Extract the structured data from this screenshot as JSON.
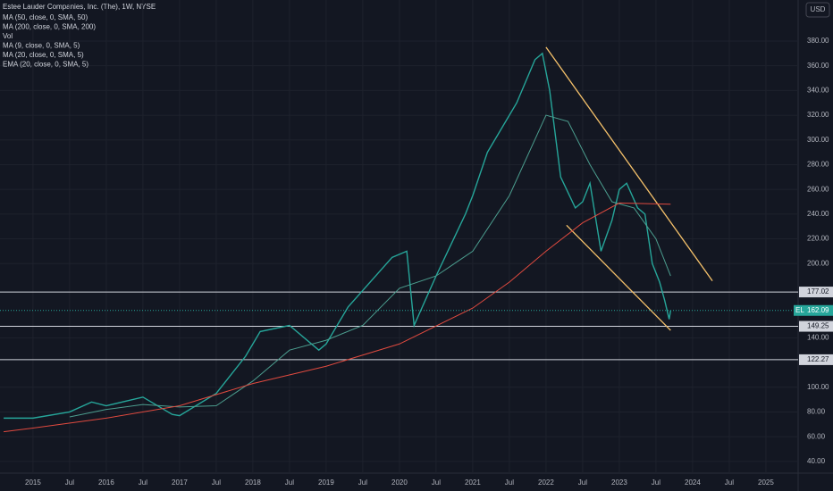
{
  "chart_data": {
    "type": "line",
    "title": "Estee Lauder Companies, Inc. (The), 1W, NYSE",
    "indicators": [
      "MA (50, close, 0, SMA, 50)",
      "MA (200, close, 0, SMA, 200)",
      "Vol",
      "MA (9, close, 0, SMA, 5)",
      "MA (20, close, 0, SMA, 5)",
      "EMA (20, close, 0, SMA, 5)"
    ],
    "currency": "USD",
    "symbol": "EL",
    "last_price": 162.09,
    "grid": true,
    "xlim": [
      2014.55,
      2025.44
    ],
    "ylim": [
      30.5,
      413.2
    ],
    "xticks": [
      2015,
      {
        "value": 2015.5,
        "label": "Jul"
      },
      2016,
      {
        "value": 2016.5,
        "label": "Jul"
      },
      2017,
      {
        "value": 2017.5,
        "label": "Jul"
      },
      2018,
      {
        "value": 2018.5,
        "label": "Jul"
      },
      2019,
      {
        "value": 2019.5,
        "label": "Jul"
      },
      2020,
      {
        "value": 2020.5,
        "label": "Jul"
      },
      2021,
      {
        "value": 2021.5,
        "label": "Jul"
      },
      2022,
      {
        "value": 2022.5,
        "label": "Jul"
      },
      2023,
      {
        "value": 2023.5,
        "label": "Jul"
      },
      2024,
      {
        "value": 2024.5,
        "label": "Jul"
      },
      2025
    ],
    "yticks": [
      {
        "value": 380,
        "label": "380.00"
      },
      {
        "value": 360,
        "label": "360.00"
      },
      {
        "value": 340,
        "label": "340.00"
      },
      {
        "value": 320,
        "label": "320.00"
      },
      {
        "value": 300,
        "label": "300.00"
      },
      {
        "value": 280,
        "label": "280.00"
      },
      {
        "value": 260,
        "label": "260.00"
      },
      {
        "value": 240,
        "label": "240.00"
      },
      {
        "value": 220,
        "label": "220.00"
      },
      {
        "value": 200,
        "label": "200.00"
      },
      {
        "value": 140,
        "label": "140.00"
      },
      {
        "value": 100,
        "label": "100.00"
      },
      {
        "value": 80,
        "label": "80.00"
      },
      {
        "value": 60,
        "label": "60.00"
      },
      {
        "value": 40,
        "label": "40.00"
      }
    ],
    "series": [
      {
        "color": "#26a69a",
        "x": [
          2014.6,
          2015.0,
          2015.5,
          2015.8,
          2016.0,
          2016.5,
          2016.9,
          2017.0,
          2017.5,
          2017.9,
          2018.1,
          2018.5,
          2018.9,
          2019.0,
          2019.3,
          2019.6,
          2019.9,
          2020.1,
          2020.2,
          2020.5,
          2020.9,
          2021.0,
          2021.2,
          2021.6,
          2021.85,
          2021.95,
          2022.05,
          2022.2,
          2022.4,
          2022.5,
          2022.6,
          2022.75,
          2022.9,
          2023.0,
          2023.1,
          2023.25,
          2023.35,
          2023.45,
          2023.55,
          2023.62,
          2023.68,
          2023.7
        ],
        "values": [
          75,
          75,
          80,
          88,
          85,
          92,
          78,
          77,
          95,
          125,
          145,
          150,
          130,
          135,
          165,
          185,
          205,
          210,
          150,
          190,
          240,
          255,
          290,
          330,
          365,
          370,
          340,
          270,
          245,
          250,
          265,
          210,
          235,
          260,
          265,
          245,
          240,
          200,
          185,
          170,
          155,
          162.09
        ]
      },
      {
        "name": "MA (50, close, 0, SMA, 50)",
        "color": "#4c9e8f",
        "x": [
          2015.5,
          2016.0,
          2016.5,
          2017.0,
          2017.5,
          2018.0,
          2018.5,
          2019.0,
          2019.5,
          2020.0,
          2020.5,
          2021.0,
          2021.5,
          2022.0,
          2022.3,
          2022.6,
          2022.9,
          2023.2,
          2023.5,
          2023.7
        ],
        "values": [
          76,
          82,
          86,
          84,
          85,
          105,
          130,
          138,
          150,
          180,
          190,
          210,
          255,
          320,
          315,
          280,
          250,
          245,
          220,
          190
        ]
      },
      {
        "name": "MA (200, close, 0, SMA, 200)",
        "color": "#e04a3f",
        "x": [
          2014.6,
          2015.0,
          2016.0,
          2017.0,
          2018.0,
          2019.0,
          2020.0,
          2021.0,
          2021.5,
          2022.0,
          2022.5,
          2023.0,
          2023.7
        ],
        "values": [
          64,
          67,
          75,
          85,
          103,
          117,
          135,
          164,
          185,
          210,
          233,
          249,
          248
        ]
      }
    ],
    "hlines": [
      177.02,
      149.25,
      122.27
    ],
    "trendlines": [
      [
        2022.0,
        375,
        2024.27,
        186
      ],
      [
        2022.28,
        231,
        2023.7,
        146
      ]
    ]
  }
}
